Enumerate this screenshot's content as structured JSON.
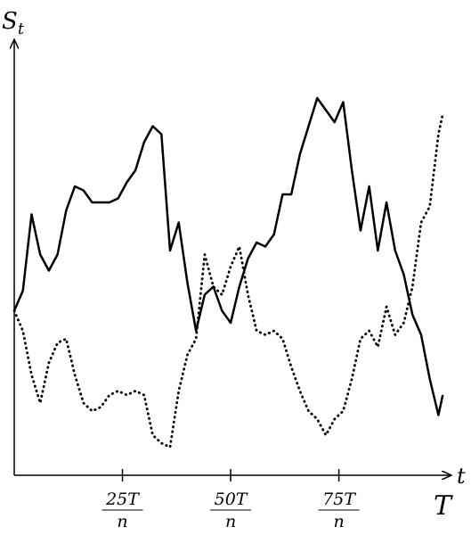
{
  "chart_data": {
    "type": "line",
    "ylabel": {
      "text": "S",
      "subscript": "t"
    },
    "xlabel": "t",
    "x_end_label": "T",
    "x": [
      0,
      2,
      4,
      6,
      8,
      10,
      12,
      14,
      16,
      18,
      20,
      22,
      24,
      26,
      28,
      30,
      32,
      34,
      36,
      38,
      40,
      42,
      44,
      46,
      48,
      50,
      52,
      54,
      56,
      58,
      60,
      62,
      64,
      66,
      68,
      70,
      72,
      74,
      76,
      78,
      80,
      82,
      84,
      86,
      88,
      90,
      92,
      94,
      96,
      98,
      99
    ],
    "series": [
      {
        "color": "#000000",
        "style": "solid",
        "values": [
          41,
          46,
          65,
          55,
          51,
          55,
          66,
          72,
          71,
          68,
          68,
          68,
          69,
          73,
          76,
          83,
          87,
          85,
          56,
          63,
          48,
          36,
          45,
          47,
          41,
          38,
          47,
          54,
          58,
          57,
          60,
          70,
          70,
          80,
          87,
          94,
          91,
          88,
          93,
          76,
          61,
          72,
          56,
          68,
          56,
          50,
          40,
          35,
          24,
          15,
          20
        ]
      },
      {
        "color": "#000000",
        "style": "dotted",
        "values": [
          41,
          36,
          25,
          18,
          28,
          33,
          34,
          25,
          18,
          16,
          17,
          20,
          21,
          20,
          21,
          20,
          10,
          8,
          7,
          21,
          30,
          34,
          55,
          47,
          45,
          52,
          57,
          45,
          36,
          35,
          36,
          34,
          27,
          21,
          16,
          14,
          10,
          14,
          16,
          24,
          34,
          36,
          32,
          42,
          35,
          38,
          47,
          63,
          67,
          85,
          90
        ]
      }
    ],
    "xlim": [
      0,
      101
    ],
    "ylim": [
      0,
      108
    ],
    "xticks": [
      {
        "value": 25,
        "label": {
          "numerator": "25T",
          "denominator": "n"
        }
      },
      {
        "value": 50,
        "label": {
          "numerator": "50T",
          "denominator": "n"
        }
      },
      {
        "value": 75,
        "label": {
          "numerator": "75T",
          "denominator": "n"
        }
      }
    ]
  }
}
